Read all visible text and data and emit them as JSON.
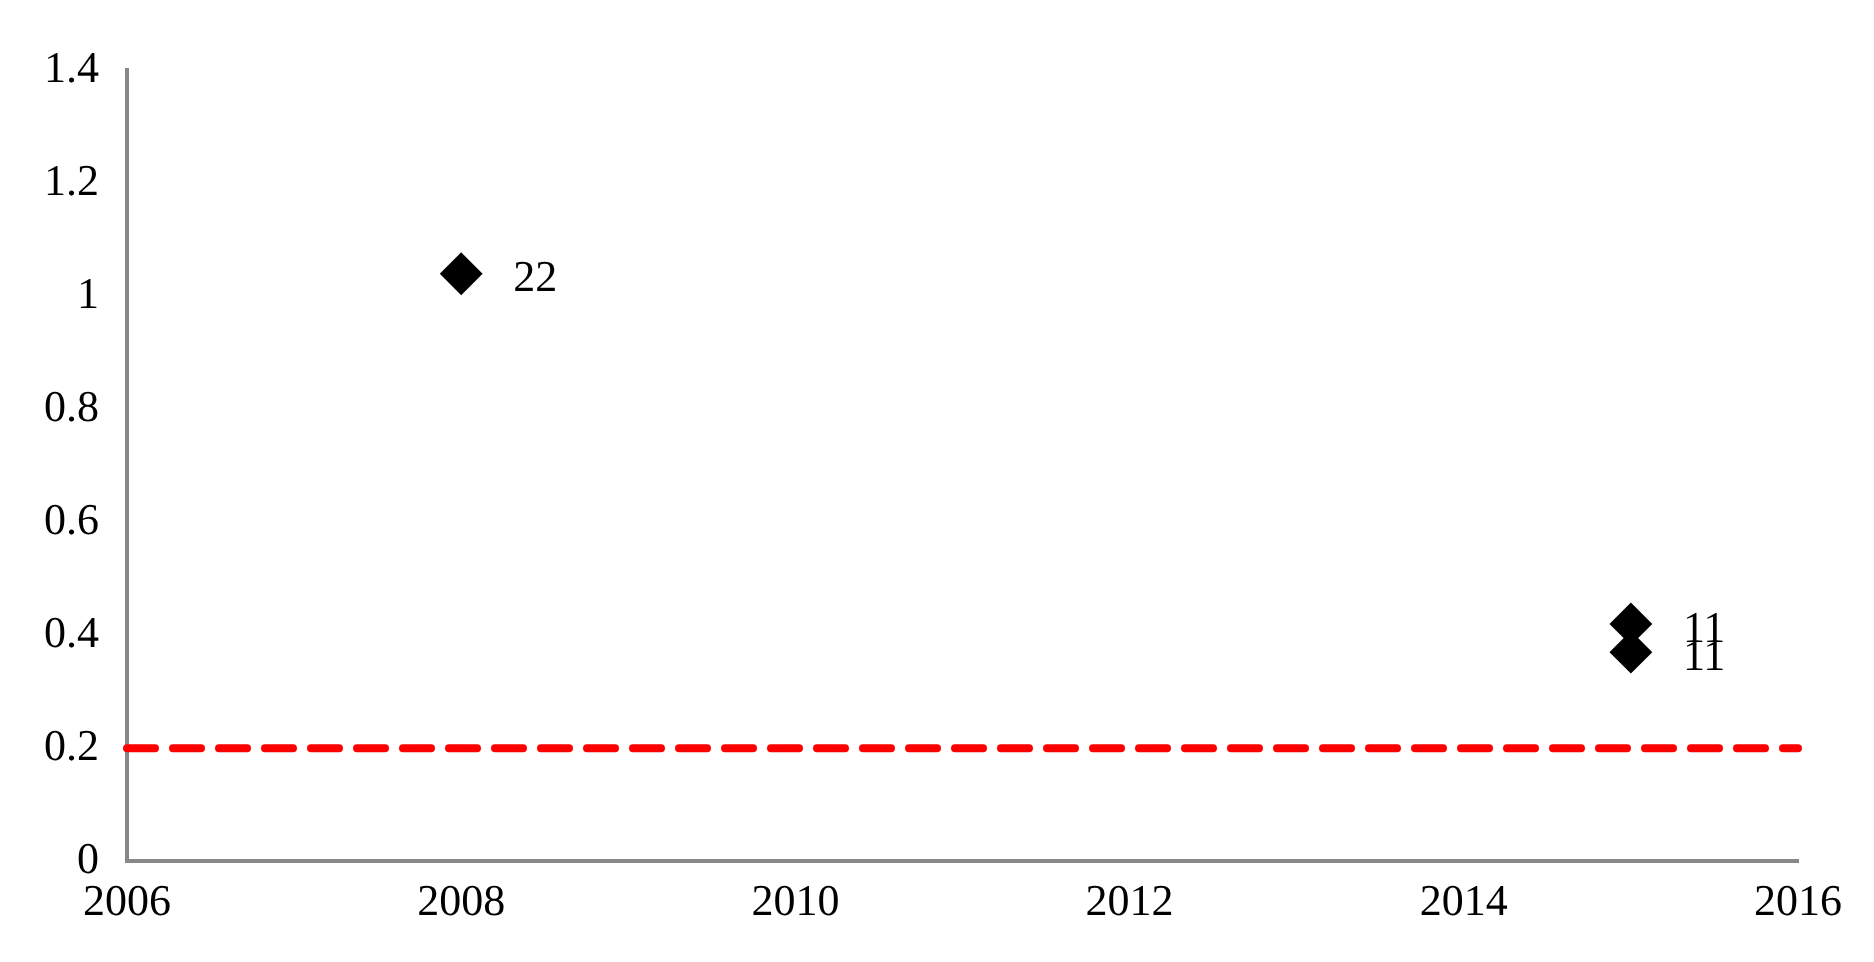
{
  "chart_data": {
    "type": "scatter",
    "x": [
      "2008",
      "2015",
      "2015"
    ],
    "values": [
      1.04,
      0.42,
      0.37
    ],
    "color": "#000000",
    "marker": "diamond",
    "xlim": [
      "2006",
      "2016"
    ],
    "xticks": [
      "2006",
      "2008",
      "2010",
      "2012",
      "2014",
      "2016"
    ],
    "ylim": [
      0,
      1.4
    ],
    "yticks": [
      0,
      0.2,
      0.4,
      0.6,
      0.8,
      1,
      1.2,
      1.4
    ],
    "grid": false,
    "legend": false,
    "ref_lines": [
      {
        "axis": "y",
        "value": 0.2,
        "color": "#ff0000",
        "line_style": "dashed"
      }
    ],
    "annotations": [
      {
        "text": "22",
        "x": "2008",
        "y": 1.04
      },
      {
        "text": "11",
        "x": "2015",
        "y": 0.42
      },
      {
        "text": "11",
        "x": "2015",
        "y": 0.37
      }
    ]
  }
}
